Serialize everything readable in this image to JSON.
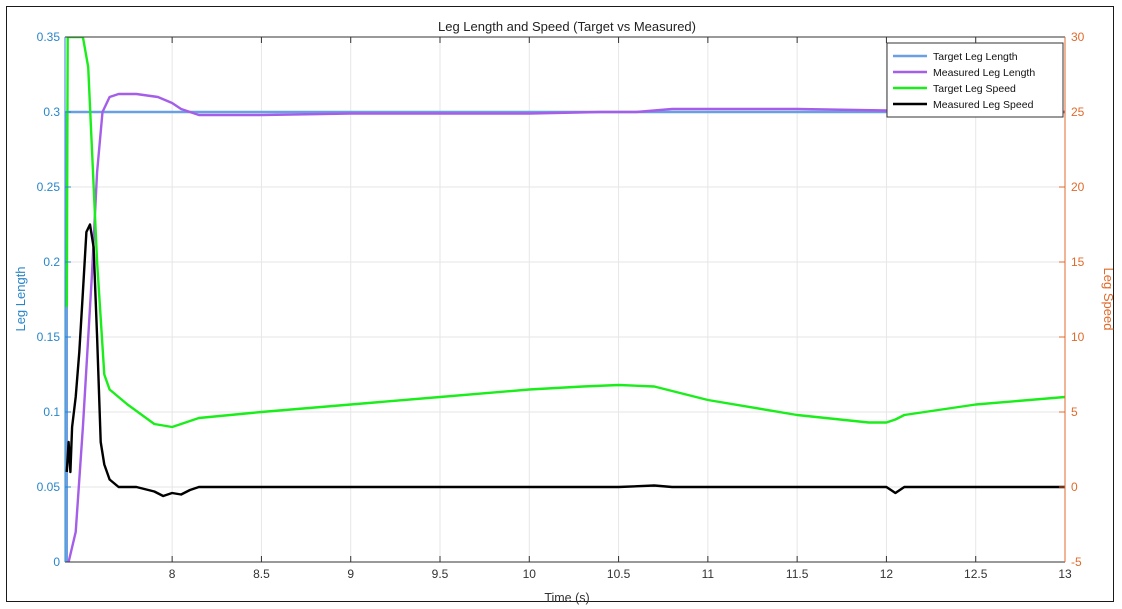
{
  "chart_data": {
    "type": "line",
    "title": "Leg Length and Speed (Target vs Measured)",
    "xlabel": "Time (s)",
    "ylabel_left": "Leg Length",
    "ylabel_right": "Leg Speed",
    "xlim": [
      7.4,
      13
    ],
    "ylim_left": [
      0,
      0.35
    ],
    "ylim_right": [
      -5,
      30
    ],
    "x_ticks": [
      "8",
      "8.5",
      "9",
      "9.5",
      "10",
      "10.5",
      "11",
      "11.5",
      "12",
      "12.5",
      "13"
    ],
    "x_tick_values": [
      8,
      8.5,
      9,
      9.5,
      10,
      10.5,
      11,
      11.5,
      12,
      12.5,
      13
    ],
    "y_ticks_left": [
      "0",
      "0.05",
      "0.1",
      "0.15",
      "0.2",
      "0.25",
      "0.3",
      "0.35"
    ],
    "y_tick_values_left": [
      0,
      0.05,
      0.1,
      0.15,
      0.2,
      0.25,
      0.3,
      0.35
    ],
    "y_ticks_right": [
      "-5",
      "0",
      "5",
      "10",
      "15",
      "20",
      "25",
      "30"
    ],
    "y_tick_values_right": [
      -5,
      0,
      5,
      10,
      15,
      20,
      25,
      30
    ],
    "grid": true,
    "legend_position": "top-right",
    "series": [
      {
        "name": "Target Leg Length",
        "axis": "left",
        "color": "#6a9fe6",
        "x": [
          7.41,
          7.41,
          13
        ],
        "y": [
          0,
          0.3,
          0.3
        ]
      },
      {
        "name": "Measured Leg Length",
        "axis": "left",
        "color": "#a45ee8",
        "x": [
          7.42,
          7.46,
          7.5,
          7.55,
          7.58,
          7.61,
          7.65,
          7.7,
          7.8,
          7.92,
          8.0,
          8.05,
          8.1,
          8.15,
          8.5,
          9.0,
          9.5,
          10.0,
          10.4,
          10.6,
          10.8,
          11.0,
          11.5,
          12.0,
          12.5,
          13.0
        ],
        "y": [
          0.0,
          0.02,
          0.09,
          0.19,
          0.26,
          0.3,
          0.31,
          0.312,
          0.312,
          0.31,
          0.306,
          0.302,
          0.3,
          0.298,
          0.298,
          0.299,
          0.299,
          0.299,
          0.3,
          0.3,
          0.302,
          0.302,
          0.302,
          0.301,
          0.3,
          0.3
        ]
      },
      {
        "name": "Target Leg Speed",
        "axis": "right",
        "color": "#1aee1a",
        "x": [
          7.41,
          7.415,
          7.42,
          7.44,
          7.48,
          7.5,
          7.53,
          7.58,
          7.62,
          7.65,
          7.75,
          7.9,
          8.0,
          8.05,
          8.15,
          8.5,
          9.0,
          9.5,
          10.0,
          10.3,
          10.5,
          10.7,
          11.0,
          11.5,
          11.9,
          12.0,
          12.05,
          12.1,
          12.5,
          13.0
        ],
        "y": [
          12,
          30,
          30,
          30,
          30,
          30,
          28,
          15,
          7.5,
          6.5,
          5.5,
          4.2,
          4.0,
          4.2,
          4.6,
          5.0,
          5.5,
          6.0,
          6.5,
          6.7,
          6.8,
          6.7,
          5.8,
          4.8,
          4.3,
          4.3,
          4.5,
          4.8,
          5.5,
          6.0
        ]
      },
      {
        "name": "Measured Leg Speed",
        "axis": "right",
        "color": "#000000",
        "x": [
          7.41,
          7.42,
          7.43,
          7.44,
          7.46,
          7.48,
          7.5,
          7.52,
          7.54,
          7.56,
          7.58,
          7.6,
          7.62,
          7.65,
          7.7,
          7.8,
          7.9,
          7.95,
          8.0,
          8.05,
          8.1,
          8.15,
          8.2,
          8.5,
          9.0,
          9.5,
          10.0,
          10.5,
          10.7,
          10.8,
          11.0,
          11.5,
          12.0,
          12.05,
          12.1,
          12.5,
          13.0
        ],
        "y": [
          1.0,
          3.0,
          1.0,
          4.0,
          6.0,
          9.0,
          13.0,
          17.0,
          17.5,
          16.0,
          10.0,
          3.0,
          1.5,
          0.5,
          0.0,
          0.0,
          -0.3,
          -0.6,
          -0.4,
          -0.5,
          -0.2,
          0.0,
          0.0,
          0.0,
          0.0,
          0.0,
          0.0,
          0.0,
          0.1,
          0.0,
          0.0,
          0.0,
          0.0,
          -0.4,
          0.0,
          0.0,
          0.0
        ]
      }
    ]
  }
}
